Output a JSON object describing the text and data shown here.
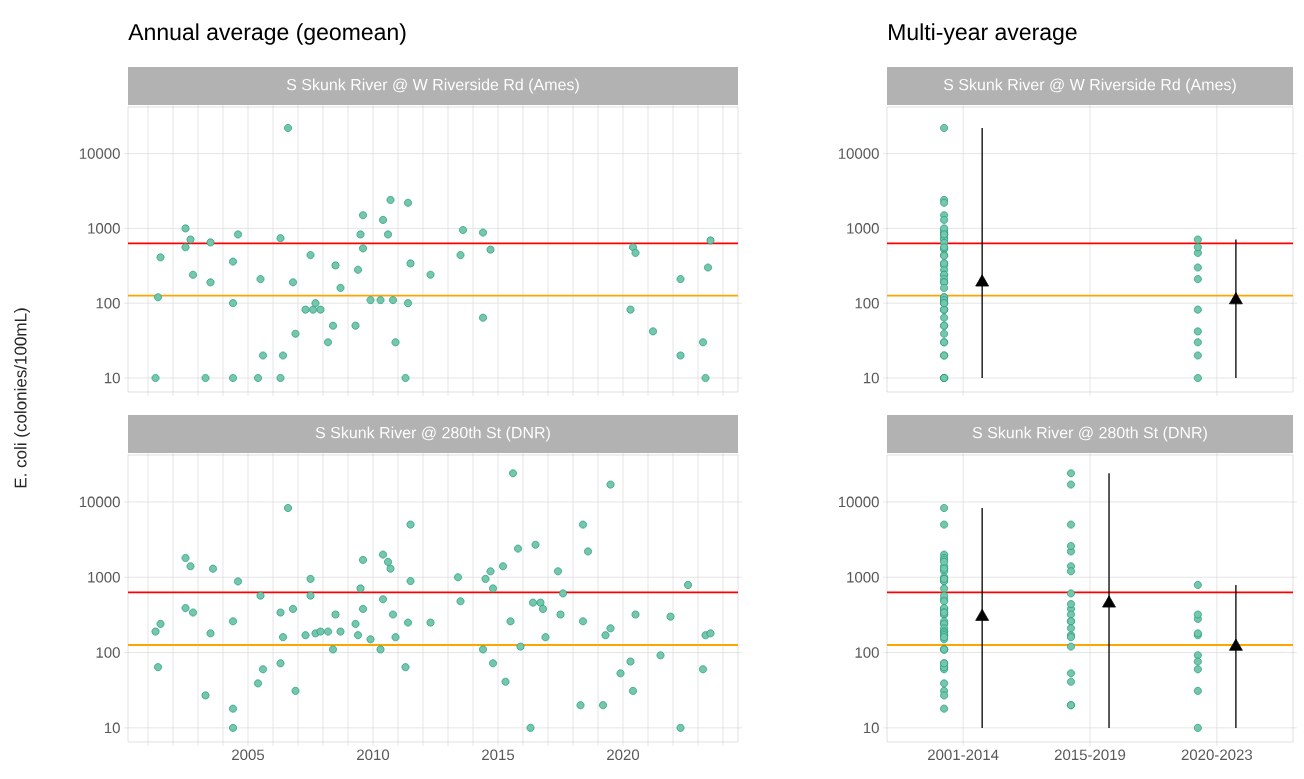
{
  "chart_data": [
    {
      "type": "scatter",
      "title": "Annual average (geomean)",
      "subtitle": "S Skunk River @ W Riverside Rd (Ames)",
      "ylabel": "E. coli (colonies/100mL)",
      "log": "y",
      "grid": true,
      "tick_labels": "y",
      "xlim": [
        2000.2,
        2024.6
      ],
      "ylim": [
        6.5,
        42000
      ],
      "xticks": [
        {
          "value": 2001,
          "label": null
        },
        {
          "value": 2002,
          "label": null
        },
        {
          "value": 2003,
          "label": null
        },
        {
          "value": 2004,
          "label": null
        },
        2005,
        {
          "value": 2006,
          "label": null
        },
        {
          "value": 2007,
          "label": null
        },
        {
          "value": 2008,
          "label": null
        },
        {
          "value": 2009,
          "label": null
        },
        2010,
        {
          "value": 2011,
          "label": null
        },
        {
          "value": 2012,
          "label": null
        },
        {
          "value": 2013,
          "label": null
        },
        {
          "value": 2014,
          "label": null
        },
        2015,
        {
          "value": 2016,
          "label": null
        },
        {
          "value": 2017,
          "label": null
        },
        {
          "value": 2018,
          "label": null
        },
        {
          "value": 2019,
          "label": null
        },
        2020,
        {
          "value": 2021,
          "label": null
        },
        {
          "value": 2022,
          "label": null
        },
        {
          "value": 2023,
          "label": null
        },
        {
          "value": 2024,
          "label": null
        }
      ],
      "yticks": [
        10,
        100,
        1000,
        10000
      ],
      "ref_lines": [
        {
          "axis": "y",
          "value": 630,
          "color": "#ff0000"
        },
        {
          "axis": "y",
          "value": 126,
          "color": "#ffa500"
        }
      ],
      "series": [
        {
          "color": "#1b9e77",
          "marker": "circle",
          "x": [
            2001.3,
            2001.4,
            2001.5,
            2002.5,
            2002.7,
            2002.5,
            2002.8,
            2003.3,
            2003.5,
            2003.5,
            2004.4,
            2004.4,
            2004.4,
            2004.6,
            2005.4,
            2005.5,
            2005.6,
            2006.3,
            2006.4,
            2006.3,
            2006.6,
            2006.9,
            2006.8,
            2007.5,
            2007.3,
            2007.6,
            2007.7,
            2007.9,
            2008.2,
            2008.4,
            2008.5,
            2008.7,
            2009.3,
            2009.4,
            2009.5,
            2009.6,
            2009.6,
            2009.9,
            2010.3,
            2010.4,
            2010.6,
            2010.7,
            2010.8,
            2010.9,
            2011.3,
            2011.4,
            2011.4,
            2011.5,
            2012.3,
            2013.6,
            2013.5,
            2014.4,
            2014.7,
            2014.4,
            2020.3,
            2020.4,
            2020.5,
            2021.2,
            2022.3,
            2022.3,
            2023.2,
            2023.3,
            2023.4,
            2023.5
          ],
          "values": [
            10,
            120,
            410,
            1000,
            710,
            560,
            240,
            10,
            650,
            190,
            100,
            360,
            10,
            830,
            10,
            210,
            20,
            10,
            20,
            740,
            22000,
            39,
            190,
            440,
            82,
            82,
            100,
            82,
            30,
            50,
            320,
            160,
            50,
            280,
            830,
            1500,
            540,
            110,
            110,
            1300,
            830,
            2400,
            110,
            30,
            10,
            100,
            2200,
            340,
            240,
            950,
            440,
            880,
            520,
            64,
            82,
            560,
            470,
            42,
            210,
            20,
            30,
            10,
            300,
            690
          ]
        }
      ]
    },
    {
      "type": "scatter",
      "title": "Multi-year average",
      "subtitle": "S Skunk River @ W Riverside Rd (Ames)",
      "log": "y",
      "grid": true,
      "tick_labels": "y",
      "categories": [
        "2001-2014",
        "2015-2019",
        "2020-2023"
      ],
      "ylim": [
        6.5,
        42000
      ],
      "yticks": [
        10,
        100,
        1000,
        10000
      ],
      "ref_lines": [
        {
          "axis": "y",
          "value": 630,
          "color": "#ff0000"
        },
        {
          "axis": "y",
          "value": 126,
          "color": "#ffa500"
        }
      ],
      "series": [
        {
          "color": "#1b9e77",
          "marker": "circle",
          "x": [
            "2001-2014",
            "2001-2014",
            "2001-2014",
            "2001-2014",
            "2001-2014",
            "2001-2014",
            "2001-2014",
            "2001-2014",
            "2001-2014",
            "2001-2014",
            "2001-2014",
            "2001-2014",
            "2001-2014",
            "2001-2014",
            "2001-2014",
            "2001-2014",
            "2001-2014",
            "2001-2014",
            "2001-2014",
            "2001-2014",
            "2001-2014",
            "2001-2014",
            "2001-2014",
            "2001-2014",
            "2001-2014",
            "2001-2014",
            "2001-2014",
            "2001-2014",
            "2001-2014",
            "2001-2014",
            "2001-2014",
            "2001-2014",
            "2001-2014",
            "2001-2014",
            "2001-2014",
            "2001-2014",
            "2001-2014",
            "2001-2014",
            "2001-2014",
            "2001-2014",
            "2001-2014",
            "2001-2014",
            "2001-2014",
            "2001-2014",
            "2001-2014",
            "2001-2014",
            "2001-2014",
            "2001-2014",
            "2001-2014",
            "2001-2014",
            "2001-2014",
            "2001-2014",
            "2020-2023",
            "2020-2023",
            "2020-2023",
            "2020-2023",
            "2020-2023",
            "2020-2023",
            "2020-2023",
            "2020-2023",
            "2020-2023",
            "2020-2023"
          ],
          "values": [
            22000,
            2400,
            2200,
            1500,
            1300,
            880,
            830,
            950,
            830,
            740,
            1000,
            710,
            830,
            640,
            540,
            530,
            560,
            440,
            430,
            340,
            320,
            280,
            340,
            240,
            240,
            210,
            190,
            190,
            160,
            120,
            110,
            100,
            120,
            110,
            100,
            82,
            82,
            82,
            100,
            64,
            50,
            50,
            39,
            30,
            30,
            20,
            20,
            10,
            10,
            10,
            10,
            10,
            710,
            470,
            300,
            560,
            210,
            82,
            42,
            30,
            20,
            10
          ]
        },
        {
          "color": "#000000",
          "marker": "triangle",
          "x": [
            "2001-2014",
            "2020-2023"
          ],
          "values": [
            190,
            110
          ],
          "errors": [
            [
              10,
              22000
            ],
            [
              10,
              710
            ]
          ]
        }
      ]
    },
    {
      "type": "scatter",
      "subtitle": "S Skunk River @ 280th St (DNR)",
      "log": "y",
      "grid": true,
      "xlim": [
        2000.2,
        2024.6
      ],
      "ylim": [
        6.5,
        42000
      ],
      "xticks": [
        {
          "value": 2001,
          "label": null
        },
        {
          "value": 2002,
          "label": null
        },
        {
          "value": 2003,
          "label": null
        },
        {
          "value": 2004,
          "label": null
        },
        2005,
        {
          "value": 2006,
          "label": null
        },
        {
          "value": 2007,
          "label": null
        },
        {
          "value": 2008,
          "label": null
        },
        {
          "value": 2009,
          "label": null
        },
        2010,
        {
          "value": 2011,
          "label": null
        },
        {
          "value": 2012,
          "label": null
        },
        {
          "value": 2013,
          "label": null
        },
        {
          "value": 2014,
          "label": null
        },
        2015,
        {
          "value": 2016,
          "label": null
        },
        {
          "value": 2017,
          "label": null
        },
        {
          "value": 2018,
          "label": null
        },
        {
          "value": 2019,
          "label": null
        },
        2020,
        {
          "value": 2021,
          "label": null
        },
        {
          "value": 2022,
          "label": null
        },
        {
          "value": 2023,
          "label": null
        },
        {
          "value": 2024,
          "label": null
        }
      ],
      "yticks": [
        10,
        100,
        1000,
        10000
      ],
      "ref_lines": [
        {
          "axis": "y",
          "value": 630,
          "color": "#ff0000"
        },
        {
          "axis": "y",
          "value": 126,
          "color": "#ffa500"
        }
      ],
      "series": [
        {
          "color": "#1b9e77",
          "marker": "circle",
          "x": [
            2001.3,
            2001.5,
            2001.4,
            2002.5,
            2002.7,
            2002.5,
            2002.8,
            2003.3,
            2003.5,
            2003.6,
            2004.4,
            2004.4,
            2004.4,
            2004.6,
            2005.4,
            2005.6,
            2005.5,
            2006.3,
            2006.3,
            2006.4,
            2006.6,
            2006.8,
            2006.9,
            2007.3,
            2007.5,
            2007.5,
            2007.7,
            2007.9,
            2008.2,
            2008.7,
            2008.4,
            2008.5,
            2009.3,
            2009.4,
            2009.5,
            2009.6,
            2009.6,
            2009.9,
            2010.3,
            2010.4,
            2010.4,
            2010.6,
            2010.7,
            2010.8,
            2010.9,
            2011.3,
            2011.4,
            2011.5,
            2011.5,
            2012.3,
            2013.4,
            2013.5,
            2014.4,
            2014.5,
            2014.7,
            2014.8,
            2014.8,
            2015.2,
            2015.3,
            2015.5,
            2015.6,
            2015.8,
            2015.9,
            2016.3,
            2016.4,
            2016.5,
            2016.7,
            2016.8,
            2016.9,
            2017.4,
            2017.5,
            2017.6,
            2018.3,
            2018.4,
            2018.4,
            2018.6,
            2019.2,
            2019.3,
            2019.5,
            2019.5,
            2019.9,
            2020.3,
            2020.4,
            2020.5,
            2021.5,
            2021.9,
            2022.3,
            2022.6,
            2023.2,
            2023.3,
            2023.5
          ],
          "values": [
            190,
            240,
            64,
            1800,
            1400,
            390,
            340,
            27,
            180,
            1300,
            18,
            10,
            260,
            880,
            39,
            60,
            570,
            72,
            340,
            160,
            8300,
            380,
            31,
            170,
            570,
            950,
            180,
            190,
            190,
            190,
            110,
            320,
            240,
            170,
            710,
            1700,
            380,
            150,
            110,
            2000,
            510,
            1600,
            1300,
            320,
            160,
            64,
            250,
            5000,
            890,
            250,
            1000,
            480,
            110,
            950,
            1200,
            710,
            72,
            1400,
            41,
            260,
            24000,
            2400,
            120,
            10,
            460,
            2700,
            460,
            380,
            160,
            1200,
            320,
            610,
            20,
            5000,
            260,
            2200,
            20,
            170,
            210,
            17000,
            53,
            76,
            31,
            320,
            92,
            300,
            10,
            790,
            60,
            170,
            180
          ]
        }
      ]
    },
    {
      "type": "scatter",
      "subtitle": "S Skunk River @ 280th St (DNR)",
      "log": "y",
      "grid": true,
      "categories": [
        "2001-2014",
        "2015-2019",
        "2020-2023"
      ],
      "ylim": [
        6.5,
        42000
      ],
      "yticks": [
        10,
        100,
        1000,
        10000
      ],
      "ref_lines": [
        {
          "axis": "y",
          "value": 630,
          "color": "#ff0000"
        },
        {
          "axis": "y",
          "value": 126,
          "color": "#ffa500"
        }
      ],
      "series": [
        {
          "color": "#1b9e77",
          "marker": "circle",
          "x": [
            "2001-2014",
            "2001-2014",
            "2001-2014",
            "2001-2014",
            "2001-2014",
            "2001-2014",
            "2001-2014",
            "2001-2014",
            "2001-2014",
            "2001-2014",
            "2001-2014",
            "2001-2014",
            "2001-2014",
            "2001-2014",
            "2001-2014",
            "2001-2014",
            "2001-2014",
            "2001-2014",
            "2001-2014",
            "2001-2014",
            "2001-2014",
            "2001-2014",
            "2001-2014",
            "2001-2014",
            "2001-2014",
            "2001-2014",
            "2001-2014",
            "2001-2014",
            "2001-2014",
            "2001-2014",
            "2001-2014",
            "2001-2014",
            "2001-2014",
            "2001-2014",
            "2001-2014",
            "2001-2014",
            "2001-2014",
            "2001-2014",
            "2001-2014",
            "2001-2014",
            "2001-2014",
            "2001-2014",
            "2001-2014",
            "2001-2014",
            "2001-2014",
            "2001-2014",
            "2001-2014",
            "2001-2014",
            "2001-2014",
            "2015-2019",
            "2015-2019",
            "2015-2019",
            "2015-2019",
            "2015-2019",
            "2015-2019",
            "2015-2019",
            "2015-2019",
            "2015-2019",
            "2015-2019",
            "2015-2019",
            "2015-2019",
            "2015-2019",
            "2015-2019",
            "2015-2019",
            "2015-2019",
            "2015-2019",
            "2015-2019",
            "2015-2019",
            "2015-2019",
            "2015-2019",
            "2020-2023",
            "2020-2023",
            "2020-2023",
            "2020-2023",
            "2020-2023",
            "2020-2023",
            "2020-2023",
            "2020-2023",
            "2020-2023",
            "2020-2023"
          ],
          "values": [
            8300,
            5000,
            2000,
            1800,
            1300,
            1200,
            1000,
            1400,
            1700,
            1600,
            1300,
            950,
            890,
            890,
            950,
            710,
            510,
            570,
            480,
            380,
            380,
            390,
            340,
            320,
            320,
            340,
            240,
            260,
            240,
            210,
            190,
            190,
            170,
            180,
            170,
            150,
            160,
            110,
            110,
            110,
            72,
            64,
            60,
            64,
            72,
            31,
            39,
            27,
            18,
            5000,
            2200,
            1400,
            17000,
            24000,
            2600,
            1200,
            610,
            380,
            260,
            440,
            320,
            260,
            170,
            210,
            120,
            160,
            53,
            41,
            20,
            20,
            790,
            280,
            320,
            170,
            180,
            92,
            76,
            60,
            31,
            10
          ]
        },
        {
          "color": "#000000",
          "marker": "triangle",
          "x": [
            "2001-2014",
            "2015-2019",
            "2020-2023"
          ],
          "values": [
            300,
            450,
            120
          ],
          "errors": [
            [
              10,
              8300
            ],
            [
              10,
              24000
            ],
            [
              10,
              790
            ]
          ]
        }
      ]
    }
  ]
}
